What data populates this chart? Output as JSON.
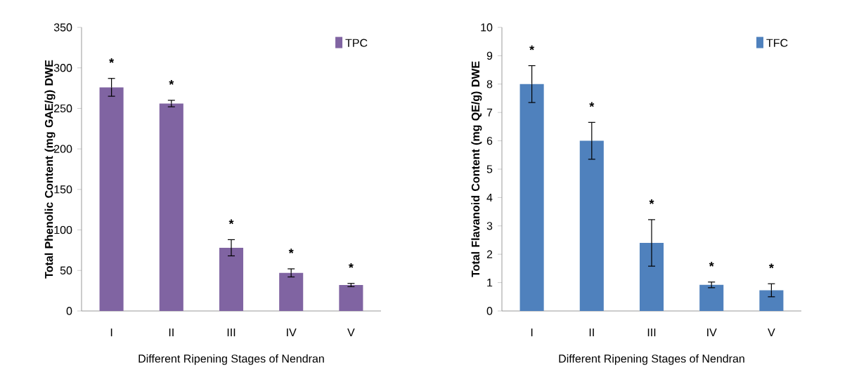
{
  "chart_data": [
    {
      "type": "bar",
      "categories": [
        "I",
        "II",
        "III",
        "IV",
        "V"
      ],
      "xlabel": "Different Ripening  Stages of Nendran",
      "ylabel": "Total Phenolic  Content (mg GAE/g) DWE",
      "series": [
        {
          "name": "TPC",
          "color": "#8064a2",
          "values": [
            276,
            256,
            78,
            47,
            32
          ],
          "errors": [
            11,
            4,
            10,
            5,
            2
          ]
        }
      ],
      "ylim": [
        0,
        350
      ],
      "yticks": [
        0,
        50,
        100,
        150,
        200,
        250,
        300,
        350
      ],
      "legend": "top right",
      "annotations": [
        "*",
        "*",
        "*",
        "*",
        "*"
      ]
    },
    {
      "type": "bar",
      "categories": [
        "I",
        "II",
        "III",
        "IV",
        "V"
      ],
      "xlabel": "Different Ripening  Stages of Nendran",
      "ylabel": "Total Flavanoid  Content (mg QE/g) DWE",
      "series": [
        {
          "name": "TFC",
          "color": "#4f81bd",
          "values": [
            8.0,
            6.0,
            2.4,
            0.92,
            0.73
          ],
          "errors": [
            0.65,
            0.65,
            0.82,
            0.1,
            0.23
          ]
        }
      ],
      "ylim": [
        0,
        10
      ],
      "yticks": [
        0,
        1,
        2,
        3,
        4,
        5,
        6,
        7,
        8,
        9,
        10
      ],
      "legend": "top right",
      "annotations": [
        "*",
        "*",
        "*",
        "*",
        "*"
      ]
    }
  ]
}
